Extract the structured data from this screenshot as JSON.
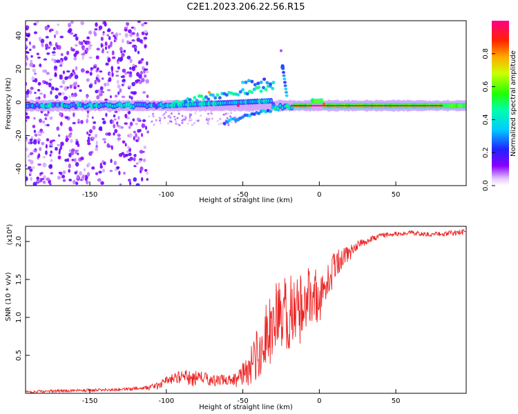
{
  "title": "C2E1.2023.206.22.56.R15",
  "colors": {
    "snr_line": "#ee2222",
    "axis": "#000000"
  },
  "chart_data": [
    {
      "type": "heatmap",
      "name": "spectrogram",
      "xlabel": "Height of straight line (km)",
      "ylabel": "Frequency (Hz)",
      "xlim": [
        -192,
        96
      ],
      "ylim": [
        -50,
        49
      ],
      "xticks": [
        -150,
        -100,
        -50,
        0,
        50
      ],
      "yticks": [
        -40,
        -20,
        0,
        20,
        40
      ],
      "grid": false,
      "colorbar": {
        "label": "Normalized spectral amplitude",
        "range": [
          0,
          1
        ],
        "ticks": [
          "0.0",
          "0.2",
          "0.4",
          "0.6",
          "0.8"
        ],
        "colormap": "rainbow (purple → blue → cyan → green → yellow → orange → red)"
      },
      "features": [
        {
          "desc": "horizontal band near 0 Hz",
          "x_range": [
            -192,
            96
          ],
          "freq": -2,
          "amplitude": "0.3–0.5 left, 0.9–1.0 right"
        },
        {
          "desc": "branch rising to +8 Hz",
          "x_range": [
            -95,
            -30
          ],
          "freq_range": [
            0,
            10
          ]
        },
        {
          "desc": "branch descending to -12 Hz",
          "x_range": [
            -62,
            -30
          ],
          "freq_range": [
            -12,
            -3
          ]
        },
        {
          "desc": "feature above band",
          "x": -24,
          "freq_range": [
            20,
            32
          ]
        }
      ]
    },
    {
      "type": "line",
      "name": "snr",
      "xlabel": "Height of straight line (km)",
      "ylabel": "SNR (10 * v/v)",
      "y_multiplier": "(x10⁴)",
      "xlim": [
        -192,
        96
      ],
      "ylim": [
        0,
        2.2
      ],
      "xticks": [
        -150,
        -100,
        -50,
        0,
        50
      ],
      "yticks": [
        "0.5",
        "1.0",
        "1.5",
        "2.0"
      ],
      "grid": false,
      "series": [
        {
          "x": [
            -192,
            -170,
            -150,
            -130,
            -115,
            -105,
            -100,
            -95,
            -90,
            -85,
            -80,
            -75,
            -70,
            -65,
            -60,
            -55,
            -50,
            -45,
            -40,
            -35,
            -30,
            -25,
            -20,
            -15,
            -10,
            -5,
            0,
            5,
            10,
            15,
            20,
            25,
            30,
            40,
            50,
            60,
            70,
            80,
            90,
            96
          ],
          "y": [
            0.02,
            0.03,
            0.04,
            0.05,
            0.07,
            0.1,
            0.16,
            0.2,
            0.22,
            0.2,
            0.18,
            0.2,
            0.17,
            0.17,
            0.18,
            0.18,
            0.25,
            0.35,
            0.55,
            0.75,
            0.9,
            1.0,
            1.05,
            1.0,
            1.25,
            1.35,
            1.25,
            1.4,
            1.7,
            1.8,
            1.85,
            1.95,
            2.0,
            2.08,
            2.1,
            2.11,
            2.1,
            2.1,
            2.12,
            2.12
          ],
          "noise": [
            0.015,
            0.02,
            0.02,
            0.02,
            0.03,
            0.05,
            0.06,
            0.07,
            0.09,
            0.1,
            0.12,
            0.09,
            0.08,
            0.07,
            0.08,
            0.1,
            0.15,
            0.25,
            0.35,
            0.45,
            0.5,
            0.55,
            0.55,
            0.5,
            0.45,
            0.4,
            0.35,
            0.3,
            0.2,
            0.15,
            0.1,
            0.06,
            0.05,
            0.03,
            0.03,
            0.03,
            0.03,
            0.03,
            0.04,
            0.04
          ]
        }
      ]
    }
  ]
}
